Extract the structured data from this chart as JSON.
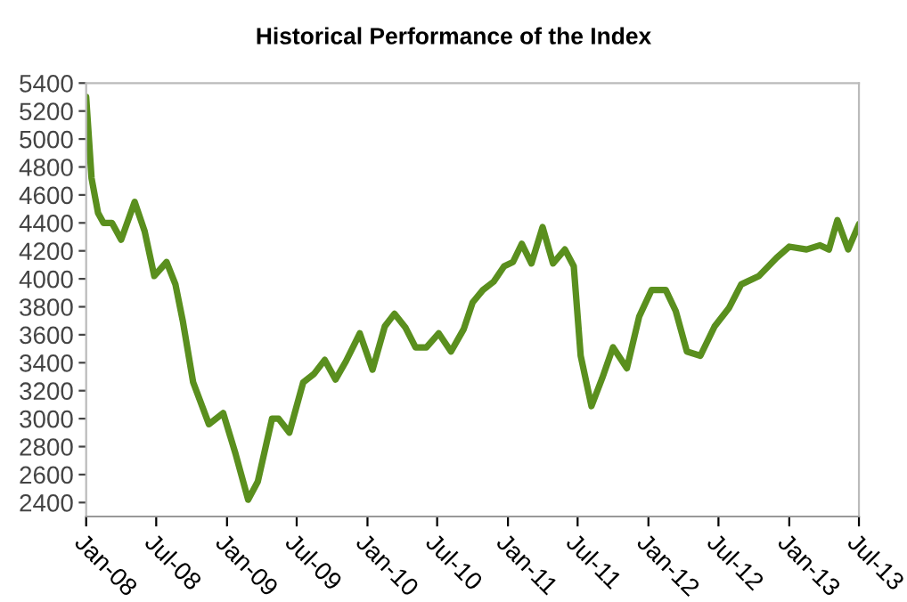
{
  "chart_data": {
    "type": "line",
    "title": "Historical Performance of the Index",
    "x": [
      "2008-01-01",
      "2008-01-15",
      "2008-02-01",
      "2008-02-15",
      "2008-03-08",
      "2008-04-01",
      "2008-05-06",
      "2008-06-01",
      "2008-06-26",
      "2008-07-28",
      "2008-08-20",
      "2008-09-08",
      "2008-10-05",
      "2008-11-15",
      "2008-12-22",
      "2009-01-23",
      "2009-02-25",
      "2009-03-22",
      "2009-04-28",
      "2009-05-15",
      "2009-06-12",
      "2009-07-18",
      "2009-08-15",
      "2009-09-12",
      "2009-10-10",
      "2009-11-06",
      "2009-12-12",
      "2010-01-14",
      "2010-02-15",
      "2010-03-12",
      "2010-04-10",
      "2010-05-06",
      "2010-06-03",
      "2010-07-05",
      "2010-08-06",
      "2010-09-08",
      "2010-10-01",
      "2010-10-28",
      "2010-11-25",
      "2010-12-22",
      "2011-01-14",
      "2011-02-06",
      "2011-03-03",
      "2011-04-01",
      "2011-04-28",
      "2011-05-29",
      "2011-06-21",
      "2011-07-09",
      "2011-08-06",
      "2011-09-03",
      "2011-10-01",
      "2011-11-06",
      "2011-12-08",
      "2012-01-09",
      "2012-02-15",
      "2012-03-12",
      "2012-04-10",
      "2012-05-15",
      "2012-06-21",
      "2012-07-28",
      "2012-08-29",
      "2012-10-14",
      "2012-11-29",
      "2013-01-01",
      "2013-02-15",
      "2013-03-22",
      "2013-04-14",
      "2013-05-06",
      "2013-06-03",
      "2013-07-01"
    ],
    "series": [
      {
        "color": "#5a8f1e",
        "values": [
          5300,
          4720,
          4470,
          4400,
          4400,
          4280,
          4550,
          4340,
          4020,
          4120,
          3960,
          3700,
          3260,
          2960,
          3040,
          2750,
          2420,
          2550,
          3000,
          3000,
          2900,
          3260,
          3320,
          3420,
          3280,
          3410,
          3610,
          3350,
          3660,
          3750,
          3650,
          3510,
          3510,
          3610,
          3480,
          3640,
          3830,
          3920,
          3980,
          4090,
          4120,
          4250,
          4110,
          4370,
          4110,
          4210,
          4090,
          3450,
          3090,
          3290,
          3510,
          3360,
          3730,
          3920,
          3920,
          3770,
          3480,
          3450,
          3660,
          3790,
          3960,
          4020,
          4150,
          4230,
          4210,
          4240,
          4210,
          4420,
          4210,
          4390
        ]
      }
    ],
    "xlim": [
      "2008-01-01",
      "2013-07-01"
    ],
    "xticks": [
      {
        "value": "2008-01-01",
        "label": "Jan-08"
      },
      {
        "value": "2008-07-01",
        "label": "Jul-08"
      },
      {
        "value": "2009-01-01",
        "label": "Jan-09"
      },
      {
        "value": "2009-07-01",
        "label": "Jul-09"
      },
      {
        "value": "2010-01-01",
        "label": "Jan-10"
      },
      {
        "value": "2010-07-01",
        "label": "Jul-10"
      },
      {
        "value": "2011-01-01",
        "label": "Jan-11"
      },
      {
        "value": "2011-07-01",
        "label": "Jul-11"
      },
      {
        "value": "2012-01-01",
        "label": "Jan-12"
      },
      {
        "value": "2012-07-01",
        "label": "Jul-12"
      },
      {
        "value": "2013-01-01",
        "label": "Jan-13"
      },
      {
        "value": "2013-07-01",
        "label": "Jul-13"
      }
    ],
    "ylim": [
      2300,
      5400
    ],
    "yticks": [
      2400,
      2600,
      2800,
      3000,
      3200,
      3400,
      3600,
      3800,
      4000,
      4200,
      4400,
      4600,
      4800,
      5000,
      5200,
      5400
    ],
    "grid": false,
    "legend": false,
    "marker": "none",
    "line_style": "solid"
  }
}
